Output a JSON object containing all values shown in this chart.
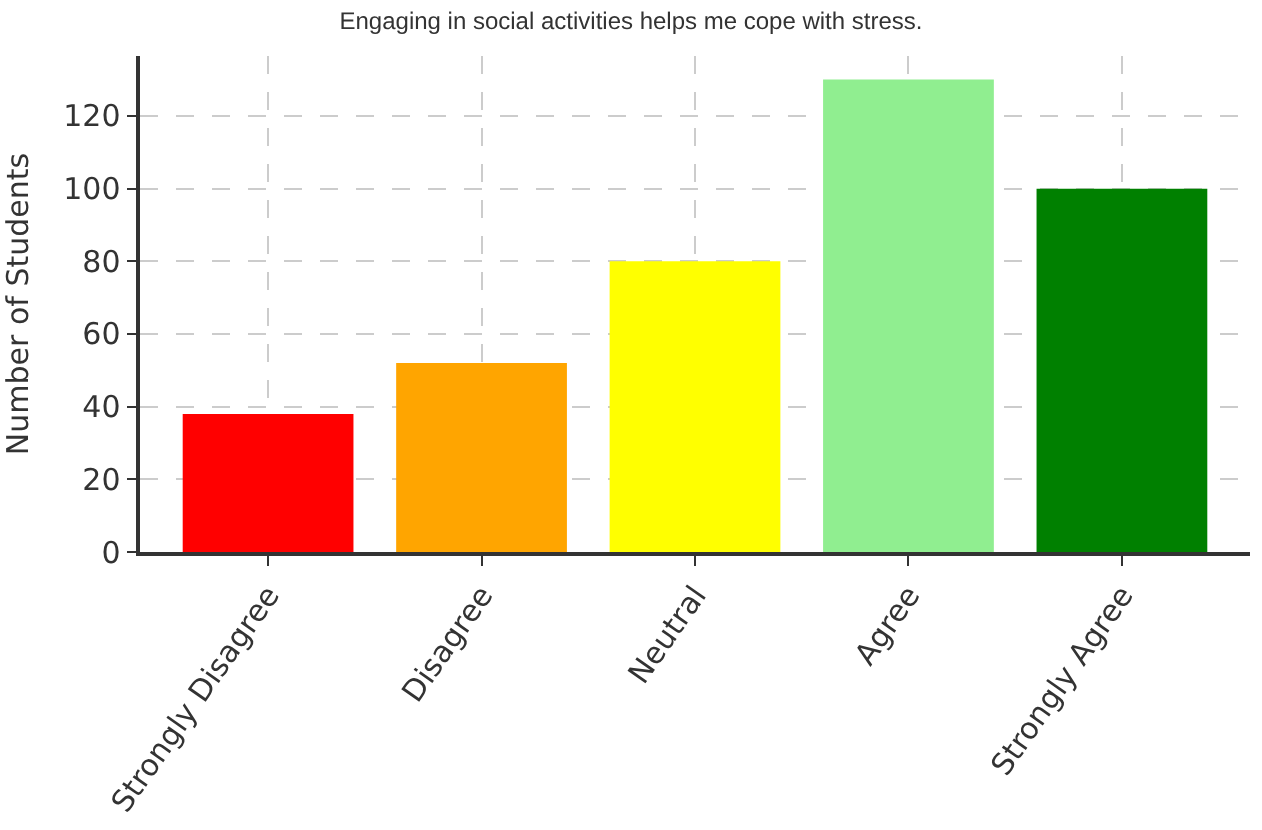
{
  "chart_data": {
    "type": "bar",
    "title": "Engaging in social activities helps me cope with stress.",
    "ylabel": "Number of Students",
    "categories": [
      "Strongly Disagree",
      "Disagree",
      "Neutral",
      "Agree",
      "Strongly Agree"
    ],
    "values": [
      38,
      52,
      80,
      130,
      100
    ],
    "colors": [
      "#ff0000",
      "#ffa500",
      "#ffff00",
      "#90ee90",
      "#008000"
    ],
    "ylim": [
      0,
      136.5
    ],
    "yticks": [
      0,
      20,
      40,
      60,
      80,
      100,
      120
    ],
    "grid": true
  }
}
